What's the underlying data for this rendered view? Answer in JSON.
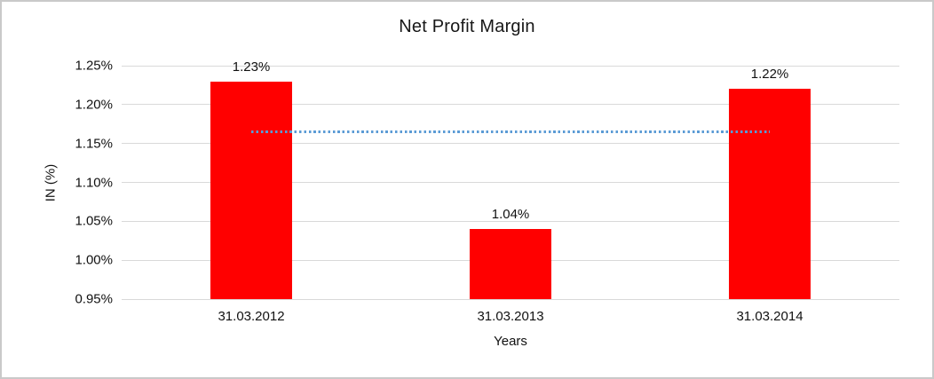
{
  "chart_data": {
    "type": "bar",
    "title": "Net Profit Margin",
    "xlabel": "Years",
    "ylabel": "IN (%)",
    "categories": [
      "31.03.2012",
      "31.03.2013",
      "31.03.2014"
    ],
    "values": [
      1.23,
      1.04,
      1.22
    ],
    "value_labels": [
      "1.23%",
      "1.04%",
      "1.22%"
    ],
    "ylim": [
      0.95,
      1.25
    ],
    "ytick_step": 0.05,
    "ytick_labels": [
      "0.95%",
      "1.00%",
      "1.05%",
      "1.10%",
      "1.15%",
      "1.20%",
      "1.25%"
    ],
    "grid": true,
    "legend": "none",
    "bar_color": "#ff0000",
    "gridline_color": "#d9d9d9",
    "text_color": "#111111",
    "frame_border_color": "#c9c9c9",
    "trendline": {
      "style": "dotted",
      "color": "#5b9bd5",
      "value": 1.165,
      "from_category_index": 0,
      "to_category_index": 2
    }
  }
}
